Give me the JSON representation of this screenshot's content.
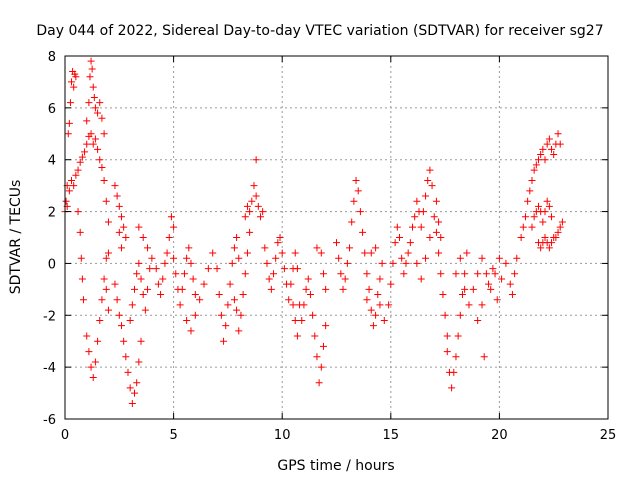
{
  "chart_data": {
    "type": "scatter",
    "title": "Day 044 of 2022, Sidereal Day-to-day VTEC variation (SDTVAR) for receiver sg27",
    "xlabel": "GPS time / hours",
    "ylabel": "SDTVAR / TECUs",
    "xlim": [
      0,
      25
    ],
    "ylim": [
      -6,
      8
    ],
    "x_ticks": [
      0,
      5,
      10,
      15,
      20,
      25
    ],
    "y_ticks": [
      -6,
      -4,
      -2,
      0,
      2,
      4,
      6,
      8
    ],
    "grid": true,
    "marker": "+",
    "series": [
      {
        "name": "SDTVAR",
        "color": "#ff0000",
        "points": [
          [
            0.0,
            2.0
          ],
          [
            0.05,
            2.4
          ],
          [
            0.1,
            3.0
          ],
          [
            0.15,
            5.0
          ],
          [
            0.2,
            5.4
          ],
          [
            0.25,
            6.2
          ],
          [
            0.3,
            7.0
          ],
          [
            0.35,
            7.4
          ],
          [
            0.4,
            6.8
          ],
          [
            0.45,
            7.3
          ],
          [
            0.5,
            7.2
          ],
          [
            0.1,
            2.2
          ],
          [
            0.2,
            2.8
          ],
          [
            0.3,
            3.2
          ],
          [
            0.4,
            3.0
          ],
          [
            0.5,
            3.4
          ],
          [
            0.6,
            3.6
          ],
          [
            0.7,
            3.9
          ],
          [
            0.8,
            4.1
          ],
          [
            0.9,
            4.3
          ],
          [
            1.0,
            4.6
          ],
          [
            1.1,
            4.9
          ],
          [
            1.2,
            5.0
          ],
          [
            1.3,
            4.6
          ],
          [
            1.4,
            4.8
          ],
          [
            1.5,
            4.4
          ],
          [
            1.6,
            4.0
          ],
          [
            1.7,
            3.7
          ],
          [
            0.6,
            2.0
          ],
          [
            0.7,
            1.2
          ],
          [
            0.75,
            0.2
          ],
          [
            0.8,
            -0.6
          ],
          [
            0.85,
            -1.4
          ],
          [
            1.0,
            5.5
          ],
          [
            1.1,
            6.2
          ],
          [
            1.15,
            7.2
          ],
          [
            1.2,
            7.8
          ],
          [
            1.25,
            7.5
          ],
          [
            1.3,
            6.8
          ],
          [
            1.35,
            6.4
          ],
          [
            1.4,
            6.0
          ],
          [
            1.5,
            5.8
          ],
          [
            1.6,
            6.2
          ],
          [
            1.7,
            5.6
          ],
          [
            1.8,
            5.0
          ],
          [
            1.0,
            -2.8
          ],
          [
            1.1,
            -3.4
          ],
          [
            1.2,
            -4.0
          ],
          [
            1.3,
            -4.4
          ],
          [
            1.4,
            -3.8
          ],
          [
            1.5,
            -3.0
          ],
          [
            1.6,
            -2.2
          ],
          [
            1.7,
            -1.4
          ],
          [
            1.8,
            -0.6
          ],
          [
            1.9,
            0.2
          ],
          [
            2.0,
            0.4
          ],
          [
            1.8,
            3.2
          ],
          [
            1.9,
            2.4
          ],
          [
            2.0,
            1.6
          ],
          [
            1.9,
            -1.0
          ],
          [
            2.0,
            -1.8
          ],
          [
            2.3,
            3.0
          ],
          [
            2.4,
            2.6
          ],
          [
            2.5,
            2.2
          ],
          [
            2.6,
            1.8
          ],
          [
            2.7,
            1.4
          ],
          [
            2.8,
            1.0
          ],
          [
            2.5,
            1.2
          ],
          [
            2.6,
            0.6
          ],
          [
            2.3,
            -0.8
          ],
          [
            2.4,
            -1.4
          ],
          [
            2.5,
            -2.0
          ],
          [
            2.6,
            -2.4
          ],
          [
            2.7,
            -3.0
          ],
          [
            2.8,
            -3.6
          ],
          [
            2.9,
            -4.2
          ],
          [
            3.0,
            -4.8
          ],
          [
            3.1,
            -5.4
          ],
          [
            3.2,
            -5.0
          ],
          [
            3.3,
            -4.6
          ],
          [
            3.4,
            -3.8
          ],
          [
            3.5,
            -3.0
          ],
          [
            3.0,
            -2.2
          ],
          [
            3.1,
            -1.6
          ],
          [
            3.2,
            -1.0
          ],
          [
            3.3,
            -0.4
          ],
          [
            3.4,
            0.0
          ],
          [
            3.5,
            -0.6
          ],
          [
            3.6,
            -1.2
          ],
          [
            3.7,
            -1.8
          ],
          [
            3.8,
            -1.0
          ],
          [
            3.9,
            -0.2
          ],
          [
            3.4,
            1.4
          ],
          [
            3.6,
            1.0
          ],
          [
            3.8,
            0.6
          ],
          [
            4.0,
            0.2
          ],
          [
            4.2,
            -0.2
          ],
          [
            4.3,
            -0.8
          ],
          [
            4.4,
            -1.2
          ],
          [
            4.5,
            -0.6
          ],
          [
            4.6,
            0.0
          ],
          [
            4.7,
            0.4
          ],
          [
            4.8,
            1.0
          ],
          [
            4.9,
            1.8
          ],
          [
            5.0,
            1.4
          ],
          [
            5.0,
            0.2
          ],
          [
            5.1,
            -0.4
          ],
          [
            5.2,
            -1.0
          ],
          [
            5.3,
            -1.6
          ],
          [
            5.4,
            -1.0
          ],
          [
            5.5,
            -0.4
          ],
          [
            5.6,
            0.2
          ],
          [
            5.7,
            0.6
          ],
          [
            5.8,
            0.0
          ],
          [
            5.9,
            -0.6
          ],
          [
            6.0,
            -1.2
          ],
          [
            5.6,
            -2.2
          ],
          [
            5.8,
            -2.6
          ],
          [
            6.0,
            -2.0
          ],
          [
            6.2,
            -1.4
          ],
          [
            6.4,
            -0.8
          ],
          [
            6.6,
            -0.2
          ],
          [
            6.8,
            0.4
          ],
          [
            7.0,
            -0.2
          ],
          [
            7.1,
            -1.2
          ],
          [
            7.2,
            -2.0
          ],
          [
            7.3,
            -3.0
          ],
          [
            7.4,
            -2.4
          ],
          [
            7.5,
            -1.6
          ],
          [
            7.6,
            -0.8
          ],
          [
            7.7,
            0.0
          ],
          [
            7.8,
            0.6
          ],
          [
            7.9,
            1.0
          ],
          [
            8.0,
            0.2
          ],
          [
            7.8,
            -1.4
          ],
          [
            7.9,
            -1.8
          ],
          [
            8.0,
            -2.6
          ],
          [
            8.1,
            -2.0
          ],
          [
            8.2,
            -1.2
          ],
          [
            8.3,
            -0.4
          ],
          [
            8.4,
            0.4
          ],
          [
            8.5,
            1.2
          ],
          [
            8.3,
            1.8
          ],
          [
            8.4,
            2.2
          ],
          [
            8.5,
            2.0
          ],
          [
            8.6,
            2.4
          ],
          [
            8.7,
            3.0
          ],
          [
            8.8,
            2.6
          ],
          [
            8.9,
            2.2
          ],
          [
            9.0,
            1.8
          ],
          [
            9.1,
            2.0
          ],
          [
            8.8,
            4.0
          ],
          [
            9.2,
            0.6
          ],
          [
            9.3,
            0.0
          ],
          [
            9.4,
            -0.6
          ],
          [
            9.5,
            -1.0
          ],
          [
            9.6,
            -0.4
          ],
          [
            9.7,
            0.2
          ],
          [
            9.8,
            0.8
          ],
          [
            9.9,
            1.0
          ],
          [
            10.0,
            0.4
          ],
          [
            10.1,
            -0.2
          ],
          [
            10.2,
            -0.8
          ],
          [
            10.3,
            -1.4
          ],
          [
            10.4,
            -0.8
          ],
          [
            10.5,
            -0.2
          ],
          [
            10.6,
            0.4
          ],
          [
            10.7,
            -0.2
          ],
          [
            10.5,
            -1.6
          ],
          [
            10.6,
            -2.2
          ],
          [
            10.7,
            -2.8
          ],
          [
            10.8,
            -1.6
          ],
          [
            10.9,
            -2.2
          ],
          [
            11.0,
            -1.6
          ],
          [
            11.1,
            -1.0
          ],
          [
            11.2,
            -0.6
          ],
          [
            11.3,
            -1.2
          ],
          [
            11.4,
            -2.0
          ],
          [
            11.5,
            -2.8
          ],
          [
            11.6,
            -3.6
          ],
          [
            11.7,
            -4.6
          ],
          [
            11.8,
            -4.0
          ],
          [
            11.9,
            -3.2
          ],
          [
            12.0,
            -2.4
          ],
          [
            11.6,
            0.6
          ],
          [
            11.8,
            0.4
          ],
          [
            11.9,
            -0.4
          ],
          [
            12.0,
            -1.0
          ],
          [
            12.5,
            0.8
          ],
          [
            12.6,
            0.2
          ],
          [
            12.7,
            -0.4
          ],
          [
            12.8,
            -1.0
          ],
          [
            12.9,
            -0.6
          ],
          [
            13.0,
            0.0
          ],
          [
            13.1,
            0.6
          ],
          [
            13.2,
            1.6
          ],
          [
            13.3,
            2.4
          ],
          [
            13.4,
            3.2
          ],
          [
            13.5,
            2.8
          ],
          [
            13.6,
            2.0
          ],
          [
            13.7,
            1.2
          ],
          [
            13.8,
            0.4
          ],
          [
            13.9,
            -0.4
          ],
          [
            14.0,
            -1.0
          ],
          [
            14.1,
            -1.8
          ],
          [
            14.2,
            -2.4
          ],
          [
            14.3,
            -2.0
          ],
          [
            14.4,
            -1.2
          ],
          [
            14.5,
            -0.6
          ],
          [
            14.6,
            0.0
          ],
          [
            13.9,
            -1.4
          ],
          [
            14.1,
            0.4
          ],
          [
            14.3,
            0.6
          ],
          [
            14.5,
            -1.6
          ],
          [
            14.7,
            -2.2
          ],
          [
            14.9,
            -1.6
          ],
          [
            15.0,
            -0.8
          ],
          [
            15.1,
            0.0
          ],
          [
            15.2,
            0.8
          ],
          [
            15.3,
            1.4
          ],
          [
            15.4,
            1.0
          ],
          [
            15.5,
            0.2
          ],
          [
            15.6,
            -0.4
          ],
          [
            15.7,
            0.0
          ],
          [
            15.8,
            0.4
          ],
          [
            15.9,
            0.8
          ],
          [
            16.0,
            1.4
          ],
          [
            16.1,
            1.8
          ],
          [
            16.2,
            2.4
          ],
          [
            16.3,
            2.0
          ],
          [
            16.4,
            1.4
          ],
          [
            16.5,
            2.0
          ],
          [
            16.6,
            2.6
          ],
          [
            16.7,
            3.2
          ],
          [
            16.8,
            3.6
          ],
          [
            16.9,
            3.0
          ],
          [
            16.2,
            0.0
          ],
          [
            16.4,
            -0.6
          ],
          [
            16.6,
            0.2
          ],
          [
            16.8,
            1.0
          ],
          [
            17.0,
            1.8
          ],
          [
            17.1,
            1.2
          ],
          [
            17.2,
            0.4
          ],
          [
            17.3,
            -0.4
          ],
          [
            17.4,
            -1.2
          ],
          [
            17.5,
            -2.0
          ],
          [
            17.6,
            -2.8
          ],
          [
            17.1,
            2.4
          ],
          [
            17.2,
            1.6
          ],
          [
            17.3,
            1.0
          ],
          [
            17.6,
            -3.4
          ],
          [
            17.7,
            -4.2
          ],
          [
            17.8,
            -4.8
          ],
          [
            17.9,
            -4.2
          ],
          [
            18.0,
            -3.6
          ],
          [
            18.1,
            -2.8
          ],
          [
            18.2,
            -2.0
          ],
          [
            18.3,
            -1.2
          ],
          [
            18.4,
            -0.4
          ],
          [
            18.5,
            0.4
          ],
          [
            18.0,
            -0.4
          ],
          [
            18.2,
            0.2
          ],
          [
            18.4,
            -1.0
          ],
          [
            18.6,
            -1.6
          ],
          [
            18.8,
            -1.0
          ],
          [
            19.0,
            -0.4
          ],
          [
            19.2,
            0.2
          ],
          [
            19.4,
            -0.4
          ],
          [
            19.6,
            -1.0
          ],
          [
            19.8,
            -0.4
          ],
          [
            20.0,
            0.2
          ],
          [
            19.0,
            -2.2
          ],
          [
            19.2,
            -1.6
          ],
          [
            19.3,
            -3.6
          ],
          [
            19.5,
            -0.8
          ],
          [
            19.7,
            -0.2
          ],
          [
            19.9,
            -1.4
          ],
          [
            20.1,
            -0.6
          ],
          [
            20.3,
            0.0
          ],
          [
            20.5,
            -0.8
          ],
          [
            20.6,
            -1.2
          ],
          [
            20.7,
            -0.4
          ],
          [
            20.8,
            0.2
          ],
          [
            21.0,
            1.0
          ],
          [
            21.1,
            1.4
          ],
          [
            21.2,
            1.8
          ],
          [
            21.3,
            2.4
          ],
          [
            21.4,
            2.8
          ],
          [
            21.5,
            3.2
          ],
          [
            21.6,
            3.6
          ],
          [
            21.7,
            3.8
          ],
          [
            21.8,
            4.0
          ],
          [
            21.9,
            4.2
          ],
          [
            22.0,
            4.4
          ],
          [
            22.1,
            4.0
          ],
          [
            22.2,
            4.6
          ],
          [
            22.3,
            4.8
          ],
          [
            22.4,
            4.4
          ],
          [
            22.5,
            4.2
          ],
          [
            22.6,
            4.6
          ],
          [
            22.7,
            5.0
          ],
          [
            22.8,
            4.6
          ],
          [
            21.5,
            1.4
          ],
          [
            21.6,
            1.8
          ],
          [
            21.7,
            2.0
          ],
          [
            21.8,
            2.2
          ],
          [
            21.9,
            2.0
          ],
          [
            22.0,
            1.6
          ],
          [
            22.1,
            2.0
          ],
          [
            22.2,
            2.4
          ],
          [
            22.3,
            2.2
          ],
          [
            22.4,
            1.8
          ],
          [
            21.8,
            0.8
          ],
          [
            21.9,
            0.6
          ],
          [
            22.0,
            0.8
          ],
          [
            22.1,
            1.0
          ],
          [
            22.2,
            0.8
          ],
          [
            22.3,
            0.6
          ],
          [
            22.4,
            0.8
          ],
          [
            22.5,
            1.0
          ],
          [
            22.6,
            1.0
          ],
          [
            22.7,
            1.2
          ],
          [
            22.8,
            1.4
          ],
          [
            22.9,
            1.6
          ]
        ]
      }
    ]
  }
}
